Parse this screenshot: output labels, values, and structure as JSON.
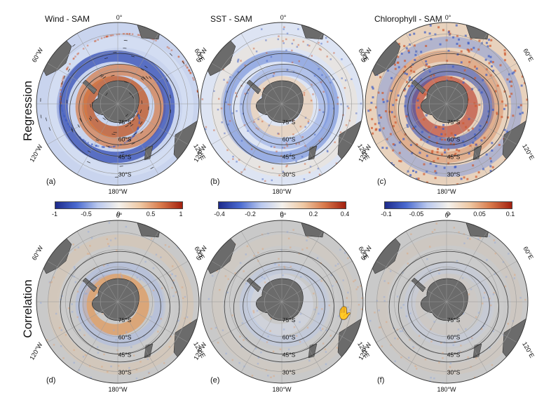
{
  "row_labels": [
    "Regression",
    "Correlation"
  ],
  "columns": [
    {
      "title": "Wind - SAM",
      "colorbar": {
        "ticks": [
          "-1",
          "-0.5",
          "0",
          "0.5",
          "1"
        ]
      }
    },
    {
      "title": "SST - SAM",
      "colorbar": {
        "ticks": [
          "-0.4",
          "-0.2",
          "0",
          "0.2",
          "0.4"
        ]
      }
    },
    {
      "title": "Chlorophyll - SAM",
      "colorbar": {
        "ticks": [
          "-0.1",
          "-0.05",
          "0",
          "0.05",
          "0.1"
        ]
      }
    }
  ],
  "panel_letters": [
    "(a)",
    "(b)",
    "(c)",
    "(d)",
    "(e)",
    "(f)"
  ],
  "longitude_labels": {
    "top": "0°",
    "bottom": "180°W",
    "upper_left": "60°W",
    "upper_right": "60°E",
    "lower_left": "120°W",
    "lower_right": "120°E"
  },
  "latitude_labels": [
    "75°S",
    "60°S",
    "45°S",
    "30°S"
  ],
  "colors": {
    "land": "#6b6b6b",
    "ocean_neutral": "#c9c9c9",
    "negative": "#2b3f9e",
    "positive": "#b2331a",
    "graticule": "#9a9a9a",
    "contour": "#333333"
  },
  "cursor_icon": "hand-pointer-icon"
}
